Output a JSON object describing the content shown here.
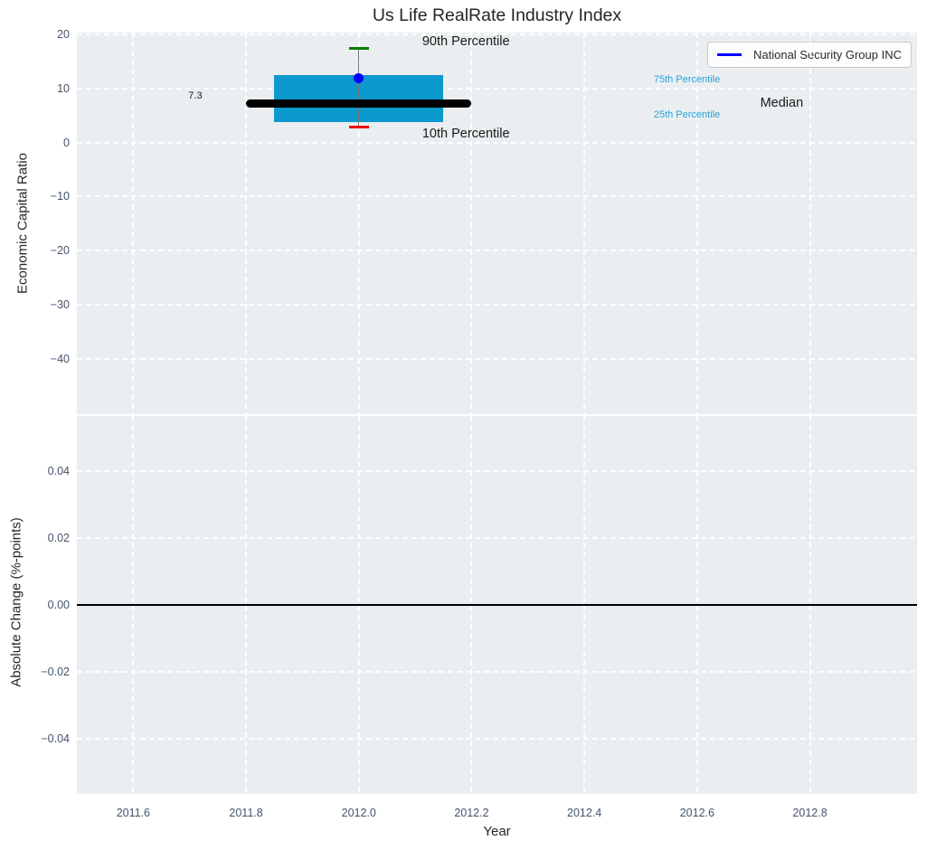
{
  "figure": {
    "title": "Us Life RealRate Industry Index",
    "background": "#ffffff",
    "plot_background": "#ebeef0",
    "grid_color": "#ffffff",
    "tick_color": "#44536b",
    "text_color": "#262626"
  },
  "legend": {
    "label": "National Security Group INC",
    "line_color": "#0000ff"
  },
  "chart_data": [
    {
      "type": "boxplot",
      "title": "Us Life RealRate Industry Index",
      "xlabel": "Year",
      "ylabel": "Economic Capital Ratio",
      "xlim": [
        2011.5,
        2012.99
      ],
      "ylim": [
        -50.3,
        20.4
      ],
      "xticks": [
        2011.6,
        2011.8,
        2012.0,
        2012.2,
        2012.4,
        2012.6,
        2012.8
      ],
      "xtick_labels": [
        "2011.6",
        "2011.8",
        "2012.0",
        "2012.2",
        "2012.4",
        "2012.6",
        "2012.8"
      ],
      "show_xtick_labels": false,
      "yticks": [
        20,
        10,
        0,
        -10,
        -20,
        -30,
        -40
      ],
      "ytick_labels": [
        "20",
        "10",
        "0",
        "−10",
        "−20",
        "−30",
        "−40"
      ],
      "grid": true,
      "legend_position": "upper right",
      "box": {
        "year": 2012.0,
        "box_left": 2011.85,
        "box_right": 2012.15,
        "median_left": 2011.8,
        "median_right": 2012.2,
        "median": 7.3,
        "q1": 3.8,
        "q3": 12.6,
        "p10": 2.9,
        "p90": 17.5,
        "company_value": 11.9,
        "cap_halfwidth": 0.018,
        "box_color": "#0c99cd",
        "median_color": "#000000",
        "p90_cap_color": "#008000",
        "p10_cap_color": "#ee0000",
        "whisker_color": "#777777",
        "marker_color": "#0000ff"
      },
      "annotations": [
        {
          "text": "90th Percentile",
          "x": 2012.19,
          "y": 18.55,
          "color": "#1a1a1a",
          "size": 14.5,
          "align": "center"
        },
        {
          "text": "10th Percentile",
          "x": 2012.19,
          "y": 1.45,
          "color": "#1a1a1a",
          "size": 14.5,
          "align": "center"
        },
        {
          "text": "75th Percentile",
          "x": 2012.523,
          "y": 11.7,
          "color": "#27a3da",
          "size": 11,
          "align": "left"
        },
        {
          "text": "25th Percentile",
          "x": 2012.523,
          "y": 5.15,
          "color": "#27a3da",
          "size": 11,
          "align": "left"
        },
        {
          "text": "Median",
          "x": 2012.75,
          "y": 7.15,
          "color": "#1a1a1a",
          "size": 14.5,
          "align": "center"
        },
        {
          "text": "7.3",
          "x": 2011.71,
          "y": 8.7,
          "color": "#1a1a1a",
          "size": 11,
          "align": "center"
        }
      ]
    },
    {
      "type": "line",
      "xlabel": "Year",
      "ylabel": "Absolute Change (%-points)",
      "xlim": [
        2011.5,
        2012.99
      ],
      "ylim": [
        -0.0563,
        0.0563
      ],
      "xticks": [
        2011.6,
        2011.8,
        2012.0,
        2012.2,
        2012.4,
        2012.6,
        2012.8
      ],
      "xtick_labels": [
        "2011.6",
        "2011.8",
        "2012.0",
        "2012.2",
        "2012.4",
        "2012.6",
        "2012.8"
      ],
      "show_xtick_labels": true,
      "yticks": [
        0.04,
        0.02,
        0,
        -0.02,
        -0.04
      ],
      "ytick_labels": [
        "0.04",
        "0.02",
        "0.00",
        "−0.02",
        "−0.04"
      ],
      "grid": true,
      "series": [],
      "zero_line": {
        "y": 0,
        "color": "#000000",
        "width": 2
      }
    }
  ]
}
